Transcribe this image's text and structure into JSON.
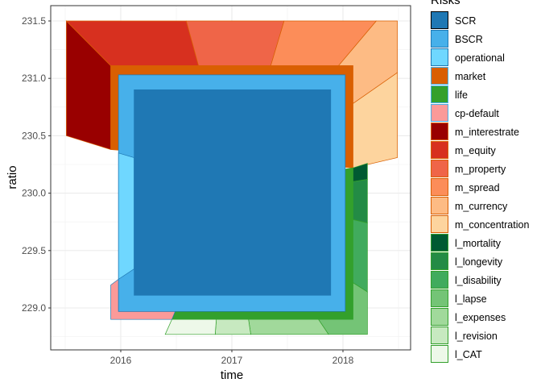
{
  "chart_data": {
    "type": "polygon",
    "xlabel": "time",
    "ylabel": "ratio",
    "xlim": [
      2015.44,
      2018.56
    ],
    "ylim": [
      228.7,
      231.63
    ],
    "x_ticks": [
      2016,
      2017,
      2018
    ],
    "x_tick_labels": [
      "2016",
      "2017",
      "2018"
    ],
    "y_ticks": [
      229.0,
      229.5,
      230.0,
      230.5,
      231.0,
      231.5
    ],
    "y_tick_labels": [
      "229.0",
      "229.5",
      "230.0",
      "230.5",
      "231.0",
      "231.5"
    ],
    "grid": true,
    "legend": {
      "title": "Risks",
      "placement": "right",
      "items": [
        {
          "label": "SCR",
          "fill": "#1f78b4",
          "border": "#000000"
        },
        {
          "label": "BSCR",
          "fill": "#47b0ea",
          "border": "#1f78b4"
        },
        {
          "label": "operational",
          "fill": "#6fd7ff",
          "border": "#1f78b4"
        },
        {
          "label": "market",
          "fill": "#d95f02",
          "border": "#47b0ea"
        },
        {
          "label": "life",
          "fill": "#33a02c",
          "border": "#47b0ea"
        },
        {
          "label": "cp-default",
          "fill": "#fb9a99",
          "border": "#47b0ea"
        },
        {
          "label": "m_interestrate",
          "fill": "#990000",
          "border": "#d95f02"
        },
        {
          "label": "m_equity",
          "fill": "#d7301f",
          "border": "#d95f02"
        },
        {
          "label": "m_property",
          "fill": "#ef6548",
          "border": "#d95f02"
        },
        {
          "label": "m_spread",
          "fill": "#fc8d59",
          "border": "#d95f02"
        },
        {
          "label": "m_currency",
          "fill": "#fdbb84",
          "border": "#d95f02"
        },
        {
          "label": "m_concentration",
          "fill": "#fdd49e",
          "border": "#d95f02"
        },
        {
          "label": "l_mortality",
          "fill": "#005a32",
          "border": "#33a02c"
        },
        {
          "label": "l_longevity",
          "fill": "#238b45",
          "border": "#33a02c"
        },
        {
          "label": "l_disability",
          "fill": "#41ab5d",
          "border": "#33a02c"
        },
        {
          "label": "l_lapse",
          "fill": "#74c476",
          "border": "#33a02c"
        },
        {
          "label": "l_expenses",
          "fill": "#a1d99b",
          "border": "#33a02c"
        },
        {
          "label": "l_revision",
          "fill": "#c7e9c0",
          "border": "#33a02c"
        },
        {
          "label": "l_CAT",
          "fill": "#edf8e9",
          "border": "#33a02c"
        }
      ]
    },
    "series": [
      {
        "name": "m_interestrate",
        "points": [
          [
            2015.51,
            231.5
          ],
          [
            2015.91,
            231.11
          ],
          [
            2015.91,
            230.38
          ],
          [
            2015.51,
            230.5
          ]
        ]
      },
      {
        "name": "m_equity",
        "points": [
          [
            2015.51,
            231.5
          ],
          [
            2016.59,
            231.5
          ],
          [
            2016.7,
            231.11
          ],
          [
            2015.91,
            231.11
          ]
        ]
      },
      {
        "name": "m_property",
        "points": [
          [
            2016.59,
            231.5
          ],
          [
            2017.47,
            231.5
          ],
          [
            2017.35,
            231.11
          ],
          [
            2016.7,
            231.11
          ]
        ]
      },
      {
        "name": "m_spread",
        "points": [
          [
            2017.47,
            231.5
          ],
          [
            2018.3,
            231.5
          ],
          [
            2017.96,
            231.11
          ],
          [
            2017.35,
            231.11
          ]
        ]
      },
      {
        "name": "m_currency",
        "points": [
          [
            2018.3,
            231.5
          ],
          [
            2018.49,
            231.5
          ],
          [
            2018.49,
            231.05
          ],
          [
            2018.09,
            230.78
          ],
          [
            2018.09,
            231.11
          ],
          [
            2017.96,
            231.11
          ]
        ]
      },
      {
        "name": "m_concentration",
        "points": [
          [
            2018.49,
            231.05
          ],
          [
            2018.49,
            230.31
          ],
          [
            2018.09,
            230.22
          ],
          [
            2018.09,
            230.78
          ]
        ]
      },
      {
        "name": "market",
        "points": [
          [
            2015.91,
            231.11
          ],
          [
            2018.09,
            231.11
          ],
          [
            2018.09,
            230.22
          ],
          [
            2015.91,
            230.38
          ]
        ]
      },
      {
        "name": "l_mortality",
        "points": [
          [
            2018.09,
            230.22
          ],
          [
            2018.22,
            230.26
          ],
          [
            2018.22,
            230.12
          ],
          [
            2018.09,
            230.1
          ]
        ]
      },
      {
        "name": "l_longevity",
        "points": [
          [
            2018.09,
            230.1
          ],
          [
            2018.22,
            230.12
          ],
          [
            2018.22,
            229.74
          ],
          [
            2018.09,
            229.77
          ]
        ]
      },
      {
        "name": "l_disability",
        "points": [
          [
            2018.09,
            229.77
          ],
          [
            2018.22,
            229.74
          ],
          [
            2018.22,
            229.14
          ],
          [
            2018.09,
            229.22
          ]
        ]
      },
      {
        "name": "l_lapse",
        "points": [
          [
            2018.09,
            229.22
          ],
          [
            2018.22,
            229.14
          ],
          [
            2018.22,
            228.77
          ],
          [
            2017.87,
            228.77
          ],
          [
            2017.78,
            228.9
          ],
          [
            2018.09,
            228.9
          ]
        ]
      },
      {
        "name": "l_expenses",
        "points": [
          [
            2017.78,
            228.9
          ],
          [
            2017.87,
            228.77
          ],
          [
            2017.17,
            228.77
          ],
          [
            2017.15,
            228.9
          ]
        ]
      },
      {
        "name": "l_revision",
        "points": [
          [
            2017.15,
            228.9
          ],
          [
            2017.17,
            228.77
          ],
          [
            2016.85,
            228.77
          ],
          [
            2016.86,
            228.9
          ]
        ]
      },
      {
        "name": "l_CAT",
        "points": [
          [
            2016.86,
            228.9
          ],
          [
            2016.85,
            228.77
          ],
          [
            2016.4,
            228.77
          ],
          [
            2016.46,
            228.9
          ]
        ]
      },
      {
        "name": "life",
        "points": [
          [
            2018.02,
            230.21
          ],
          [
            2018.09,
            230.22
          ],
          [
            2018.09,
            228.9
          ],
          [
            2016.46,
            228.9
          ],
          [
            2016.49,
            228.97
          ],
          [
            2018.02,
            228.97
          ]
        ]
      },
      {
        "name": "cp-default",
        "points": [
          [
            2015.91,
            229.2
          ],
          [
            2015.98,
            229.25
          ],
          [
            2015.98,
            228.97
          ],
          [
            2016.49,
            228.97
          ],
          [
            2016.46,
            228.9
          ],
          [
            2015.91,
            228.9
          ]
        ]
      },
      {
        "name": "BSCR",
        "points": [
          [
            2015.98,
            231.03
          ],
          [
            2018.02,
            231.03
          ],
          [
            2018.02,
            228.97
          ],
          [
            2015.98,
            228.97
          ]
        ]
      },
      {
        "name": "operational",
        "points": [
          [
            2015.98,
            230.35
          ],
          [
            2016.12,
            230.31
          ],
          [
            2016.12,
            229.34
          ],
          [
            2015.98,
            229.25
          ]
        ]
      },
      {
        "name": "SCR",
        "points": [
          [
            2016.12,
            230.9
          ],
          [
            2017.89,
            230.9
          ],
          [
            2017.89,
            229.11
          ],
          [
            2016.12,
            229.11
          ]
        ]
      }
    ]
  }
}
